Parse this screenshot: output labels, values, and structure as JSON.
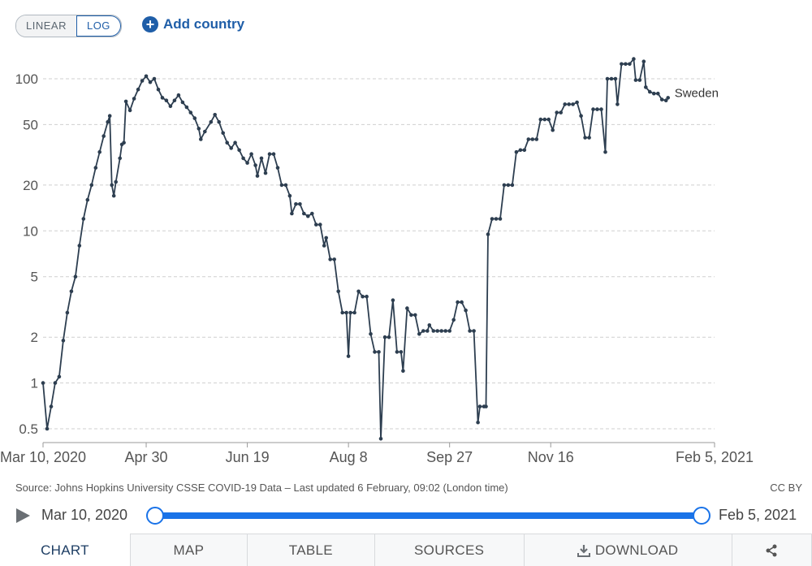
{
  "controls": {
    "scale_linear": "LINEAR",
    "scale_log": "LOG",
    "selected_scale": "LOG",
    "add_country": "Add country"
  },
  "chart_data": {
    "type": "line",
    "y_scale": "log",
    "ylim": [
      0.45,
      175
    ],
    "y_ticks": [
      0.5,
      1,
      2,
      5,
      10,
      20,
      50,
      100
    ],
    "y_tick_labels": [
      "0.5",
      "1",
      "2",
      "5",
      "10",
      "20",
      "50",
      "100"
    ],
    "x_start": "2020-03-10",
    "x_end": "2021-02-05",
    "x_ticks": [
      "2020-03-10",
      "2020-04-30",
      "2020-06-19",
      "2020-08-08",
      "2020-09-27",
      "2020-11-16",
      "2021-02-05"
    ],
    "x_tick_labels": [
      "Mar 10, 2020",
      "Apr 30",
      "Jun 19",
      "Aug 8",
      "Sep 27",
      "Nov 16",
      "Feb 5, 2021"
    ],
    "grid": "horizontal dashed",
    "series": [
      {
        "name": "Sweden",
        "color": "#2d3e50",
        "points": [
          [
            "2020-03-10",
            1.0
          ],
          [
            "2020-03-12",
            0.5
          ],
          [
            "2020-03-14",
            0.7
          ],
          [
            "2020-03-16",
            1.0
          ],
          [
            "2020-03-18",
            1.1
          ],
          [
            "2020-03-20",
            1.9
          ],
          [
            "2020-03-22",
            2.9
          ],
          [
            "2020-03-24",
            4.0
          ],
          [
            "2020-03-26",
            5.0
          ],
          [
            "2020-03-28",
            8.0
          ],
          [
            "2020-03-30",
            12.0
          ],
          [
            "2020-04-01",
            16.0
          ],
          [
            "2020-04-03",
            20.0
          ],
          [
            "2020-04-05",
            26.0
          ],
          [
            "2020-04-07",
            33.0
          ],
          [
            "2020-04-09",
            42.0
          ],
          [
            "2020-04-11",
            52.0
          ],
          [
            "2020-04-12",
            57.0
          ],
          [
            "2020-04-13",
            20.0
          ],
          [
            "2020-04-14",
            17.0
          ],
          [
            "2020-04-15",
            21.0
          ],
          [
            "2020-04-17",
            30.0
          ],
          [
            "2020-04-18",
            37.0
          ],
          [
            "2020-04-19",
            38.0
          ],
          [
            "2020-04-20",
            71.0
          ],
          [
            "2020-04-22",
            62.0
          ],
          [
            "2020-04-24",
            74.0
          ],
          [
            "2020-04-26",
            85.0
          ],
          [
            "2020-04-28",
            97.0
          ],
          [
            "2020-04-30",
            104.0
          ],
          [
            "2020-05-02",
            95.0
          ],
          [
            "2020-05-04",
            100.0
          ],
          [
            "2020-05-06",
            85.0
          ],
          [
            "2020-05-08",
            75.0
          ],
          [
            "2020-05-10",
            72.0
          ],
          [
            "2020-05-12",
            66.0
          ],
          [
            "2020-05-14",
            72.0
          ],
          [
            "2020-05-16",
            78.0
          ],
          [
            "2020-05-18",
            70.0
          ],
          [
            "2020-05-20",
            65.0
          ],
          [
            "2020-05-22",
            60.0
          ],
          [
            "2020-05-24",
            55.0
          ],
          [
            "2020-05-26",
            47.0
          ],
          [
            "2020-05-27",
            40.0
          ],
          [
            "2020-05-29",
            45.0
          ],
          [
            "2020-06-01",
            52.0
          ],
          [
            "2020-06-03",
            58.0
          ],
          [
            "2020-06-05",
            52.0
          ],
          [
            "2020-06-07",
            44.0
          ],
          [
            "2020-06-09",
            38.0
          ],
          [
            "2020-06-11",
            35.0
          ],
          [
            "2020-06-13",
            38.0
          ],
          [
            "2020-06-15",
            34.0
          ],
          [
            "2020-06-17",
            30.0
          ],
          [
            "2020-06-19",
            28.0
          ],
          [
            "2020-06-21",
            32.0
          ],
          [
            "2020-06-23",
            27.0
          ],
          [
            "2020-06-24",
            23.0
          ],
          [
            "2020-06-26",
            30.0
          ],
          [
            "2020-06-28",
            24.0
          ],
          [
            "2020-06-30",
            32.0
          ],
          [
            "2020-07-02",
            32.0
          ],
          [
            "2020-07-04",
            26.0
          ],
          [
            "2020-07-06",
            20.0
          ],
          [
            "2020-07-08",
            20.0
          ],
          [
            "2020-07-10",
            17.0
          ],
          [
            "2020-07-11",
            13.0
          ],
          [
            "2020-07-13",
            15.0
          ],
          [
            "2020-07-15",
            15.0
          ],
          [
            "2020-07-17",
            13.0
          ],
          [
            "2020-07-19",
            12.5
          ],
          [
            "2020-07-21",
            13.0
          ],
          [
            "2020-07-23",
            11.0
          ],
          [
            "2020-07-25",
            11.0
          ],
          [
            "2020-07-27",
            8.0
          ],
          [
            "2020-07-28",
            9.0
          ],
          [
            "2020-07-30",
            6.5
          ],
          [
            "2020-08-01",
            6.5
          ],
          [
            "2020-08-03",
            4.0
          ],
          [
            "2020-08-05",
            2.9
          ],
          [
            "2020-08-07",
            2.9
          ],
          [
            "2020-08-08",
            1.5
          ],
          [
            "2020-08-09",
            2.9
          ],
          [
            "2020-08-11",
            2.9
          ],
          [
            "2020-08-13",
            4.0
          ],
          [
            "2020-08-15",
            3.7
          ],
          [
            "2020-08-17",
            3.7
          ],
          [
            "2020-08-19",
            2.1
          ],
          [
            "2020-08-21",
            1.6
          ],
          [
            "2020-08-23",
            1.6
          ],
          [
            "2020-08-24",
            0.43
          ],
          [
            "2020-08-26",
            2.0
          ],
          [
            "2020-08-28",
            2.0
          ],
          [
            "2020-08-30",
            3.5
          ],
          [
            "2020-09-01",
            1.6
          ],
          [
            "2020-09-03",
            1.6
          ],
          [
            "2020-09-04",
            1.2
          ],
          [
            "2020-09-06",
            3.1
          ],
          [
            "2020-09-08",
            2.8
          ],
          [
            "2020-09-10",
            2.8
          ],
          [
            "2020-09-12",
            2.1
          ],
          [
            "2020-09-14",
            2.2
          ],
          [
            "2020-09-16",
            2.2
          ],
          [
            "2020-09-17",
            2.4
          ],
          [
            "2020-09-19",
            2.2
          ],
          [
            "2020-09-21",
            2.2
          ],
          [
            "2020-09-23",
            2.2
          ],
          [
            "2020-09-25",
            2.2
          ],
          [
            "2020-09-27",
            2.2
          ],
          [
            "2020-09-29",
            2.6
          ],
          [
            "2020-10-01",
            3.4
          ],
          [
            "2020-10-03",
            3.4
          ],
          [
            "2020-10-05",
            3.0
          ],
          [
            "2020-10-07",
            2.2
          ],
          [
            "2020-10-09",
            2.2
          ],
          [
            "2020-10-11",
            0.55
          ],
          [
            "2020-10-12",
            0.7
          ],
          [
            "2020-10-14",
            0.7
          ],
          [
            "2020-10-15",
            0.7
          ],
          [
            "2020-10-16",
            9.5
          ],
          [
            "2020-10-18",
            12.0
          ],
          [
            "2020-10-20",
            12.0
          ],
          [
            "2020-10-22",
            12.0
          ],
          [
            "2020-10-24",
            20.0
          ],
          [
            "2020-10-26",
            20.0
          ],
          [
            "2020-10-28",
            20.0
          ],
          [
            "2020-10-30",
            33.0
          ],
          [
            "2020-11-01",
            34.0
          ],
          [
            "2020-11-03",
            34.0
          ],
          [
            "2020-11-05",
            40.0
          ],
          [
            "2020-11-07",
            40.0
          ],
          [
            "2020-11-09",
            40.0
          ],
          [
            "2020-11-11",
            54.0
          ],
          [
            "2020-11-13",
            54.0
          ],
          [
            "2020-11-15",
            54.0
          ],
          [
            "2020-11-17",
            46.0
          ],
          [
            "2020-11-19",
            60.0
          ],
          [
            "2020-11-21",
            60.0
          ],
          [
            "2020-11-23",
            68.0
          ],
          [
            "2020-11-25",
            68.0
          ],
          [
            "2020-11-27",
            68.0
          ],
          [
            "2020-11-29",
            70.0
          ],
          [
            "2020-12-01",
            57.0
          ],
          [
            "2020-12-03",
            41.0
          ],
          [
            "2020-12-05",
            41.0
          ],
          [
            "2020-12-07",
            63.0
          ],
          [
            "2020-12-09",
            63.0
          ],
          [
            "2020-12-11",
            63.0
          ],
          [
            "2020-12-13",
            33.0
          ],
          [
            "2020-12-14",
            100.0
          ],
          [
            "2020-12-16",
            100.0
          ],
          [
            "2020-12-18",
            100.0
          ],
          [
            "2020-12-19",
            68.0
          ],
          [
            "2020-12-21",
            125.0
          ],
          [
            "2020-12-23",
            125.0
          ],
          [
            "2020-12-25",
            125.0
          ],
          [
            "2020-12-27",
            135.0
          ],
          [
            "2020-12-28",
            98.0
          ],
          [
            "2020-12-30",
            98.0
          ],
          [
            "2021-01-01",
            130.0
          ],
          [
            "2021-01-02",
            88.0
          ],
          [
            "2021-01-04",
            82.0
          ],
          [
            "2021-01-06",
            80.0
          ],
          [
            "2021-01-08",
            80.0
          ],
          [
            "2021-01-10",
            73.0
          ],
          [
            "2021-01-12",
            72.0
          ],
          [
            "2021-01-13",
            75.0
          ]
        ]
      }
    ]
  },
  "source": "Source: Johns Hopkins University CSSE COVID-19 Data – Last updated 6 February, 09:02 (London time)",
  "license": "CC BY",
  "timeline": {
    "start_label": "Mar 10, 2020",
    "end_label": "Feb 5, 2021",
    "range_start_fraction": 0,
    "range_end_fraction": 1
  },
  "tabs": [
    {
      "label": "CHART",
      "active": true
    },
    {
      "label": "MAP",
      "active": false
    },
    {
      "label": "TABLE",
      "active": false
    },
    {
      "label": "SOURCES",
      "active": false
    },
    {
      "label": "DOWNLOAD",
      "active": false
    }
  ],
  "share_icon": "share-icon"
}
